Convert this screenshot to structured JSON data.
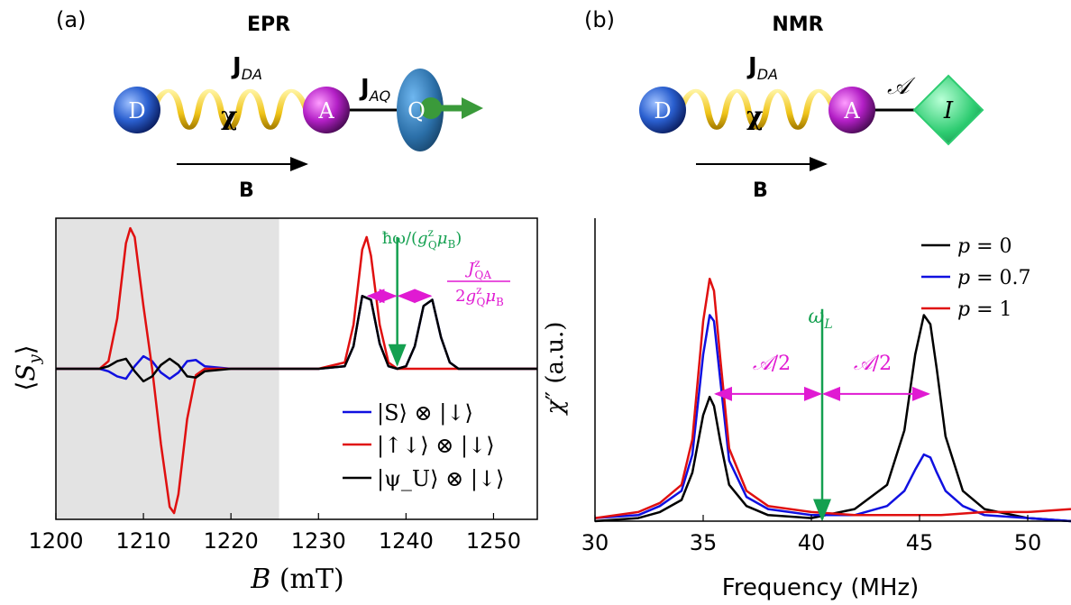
{
  "chart_data": [
    {
      "type": "line",
      "panel_label": "(a)",
      "title": "EPR",
      "schematic": {
        "nodes": [
          "D",
          "A",
          "Q"
        ],
        "coupling_labels": [
          "J_DA",
          "J_AQ"
        ],
        "coupling_symbol": "χ",
        "field_label": "B",
        "colors": {
          "D": "#2a5fcf",
          "A": "#b31fc6",
          "Q": "#2b6fa8",
          "arrow": "#3a9a3a",
          "spring": "#f0c419"
        }
      },
      "xlabel": "B (mT)",
      "ylabel": "⟨S_y⟩",
      "xlim": [
        1200,
        1255
      ],
      "ylim": [
        -1.2,
        1.2
      ],
      "xticks": [
        "1200",
        "1210",
        "1220",
        "1230",
        "1240",
        "1250"
      ],
      "shaded_region": [
        1200,
        1225.5
      ],
      "series": [
        {
          "name": "|S⟩ ⊗ |↓⟩",
          "color": "#1010e0",
          "x": [
            1200,
            1205,
            1206,
            1207,
            1208,
            1209,
            1210,
            1211,
            1212,
            1213,
            1214,
            1215,
            1216,
            1217,
            1220,
            1230,
            1233,
            1234,
            1235,
            1236,
            1237,
            1238,
            1239,
            1240,
            1241,
            1242,
            1243,
            1244,
            1245,
            1246,
            1247,
            1255
          ],
          "y": [
            0,
            0,
            -0.02,
            -0.06,
            -0.08,
            0.02,
            0.1,
            0.06,
            -0.03,
            -0.08,
            -0.03,
            0.06,
            0.07,
            0.02,
            0,
            0,
            0.02,
            0.18,
            0.58,
            0.55,
            0.2,
            0.02,
            0,
            0.02,
            0.18,
            0.5,
            0.55,
            0.25,
            0.05,
            0,
            0,
            0
          ]
        },
        {
          "name": "|↑↓⟩ ⊗ |↓⟩",
          "color": "#e01010",
          "x": [
            1200,
            1205,
            1206,
            1207,
            1208,
            1208.5,
            1209,
            1210,
            1211,
            1212,
            1213,
            1213.5,
            1214,
            1215,
            1216,
            1217,
            1220,
            1230,
            1233,
            1234,
            1235,
            1235.5,
            1236,
            1237,
            1238,
            1239,
            1255
          ],
          "y": [
            0,
            0,
            0.06,
            0.4,
            1.0,
            1.12,
            1.05,
            0.5,
            0,
            -0.6,
            -1.1,
            -1.15,
            -1.0,
            -0.4,
            -0.05,
            0,
            0,
            0,
            0.05,
            0.35,
            0.95,
            1.05,
            0.9,
            0.35,
            0.05,
            0,
            0
          ]
        },
        {
          "name": "|ψ_U⟩ ⊗ |↓⟩",
          "color": "#000000",
          "x": [
            1200,
            1205,
            1206,
            1207,
            1208,
            1209,
            1210,
            1211,
            1212,
            1213,
            1214,
            1215,
            1216,
            1217,
            1220,
            1230,
            1233,
            1234,
            1235,
            1236,
            1237,
            1238,
            1239,
            1240,
            1241,
            1242,
            1243,
            1244,
            1245,
            1246,
            1247,
            1255
          ],
          "y": [
            0,
            0,
            0.02,
            0.06,
            0.08,
            -0.02,
            -0.1,
            -0.06,
            0.03,
            0.08,
            0.03,
            -0.06,
            -0.07,
            -0.02,
            0,
            0,
            0.02,
            0.18,
            0.58,
            0.55,
            0.2,
            0.02,
            0,
            0.02,
            0.18,
            0.5,
            0.55,
            0.25,
            0.05,
            0,
            0,
            0
          ]
        }
      ],
      "annotations": [
        {
          "text": "ħω/(g^z_Q μ_B)",
          "color": "#14a050",
          "arrow_x": 1239,
          "arrow_from_y": 1.05,
          "arrow_to_y": 0.02
        },
        {
          "text": "J^z_QA / 2g^z_Q μ_B",
          "color": "#e01ad2",
          "segments": [
            [
              1235.5,
              1239
            ],
            [
              1239,
              1243
            ]
          ],
          "y": 0.58
        }
      ],
      "legend": "bottom-right"
    },
    {
      "type": "line",
      "panel_label": "(b)",
      "title": "NMR",
      "schematic": {
        "nodes": [
          "D",
          "A",
          "I"
        ],
        "coupling_labels": [
          "J_DA",
          "𝒜"
        ],
        "coupling_symbol": "χ",
        "field_label": "B",
        "colors": {
          "D": "#2a5fcf",
          "A": "#b31fc6",
          "I": "#2ecc71",
          "spring": "#f0c419"
        }
      },
      "xlabel": "Frequency (MHz)",
      "ylabel": "χ″ (a.u.)",
      "xlim": [
        30,
        52
      ],
      "ylim": [
        0,
        1.0
      ],
      "xticks": [
        "30",
        "35",
        "40",
        "45",
        "50"
      ],
      "series": [
        {
          "name": "p = 0",
          "color": "#000000",
          "x": [
            30,
            32,
            33,
            34,
            34.5,
            35,
            35.3,
            35.5,
            35.8,
            36.2,
            37,
            38,
            40,
            42,
            43.5,
            44.3,
            44.8,
            45.2,
            45.5,
            45.8,
            46.2,
            47,
            48,
            50,
            52
          ],
          "y": [
            0.0,
            0.01,
            0.03,
            0.07,
            0.16,
            0.35,
            0.41,
            0.38,
            0.26,
            0.12,
            0.05,
            0.02,
            0.01,
            0.04,
            0.12,
            0.3,
            0.55,
            0.68,
            0.65,
            0.5,
            0.28,
            0.1,
            0.04,
            0.01,
            0.0
          ]
        },
        {
          "name": "p = 0.7",
          "color": "#1010e0",
          "x": [
            30,
            32,
            33,
            34,
            34.5,
            35,
            35.3,
            35.5,
            35.8,
            36.2,
            37,
            38,
            40,
            42,
            43.5,
            44.3,
            44.8,
            45.2,
            45.5,
            45.8,
            46.2,
            47,
            48,
            50,
            52
          ],
          "y": [
            0.01,
            0.02,
            0.05,
            0.1,
            0.22,
            0.55,
            0.68,
            0.66,
            0.46,
            0.2,
            0.08,
            0.04,
            0.02,
            0.02,
            0.05,
            0.1,
            0.17,
            0.22,
            0.21,
            0.16,
            0.1,
            0.05,
            0.02,
            0.01,
            0.0
          ]
        },
        {
          "name": "p = 1",
          "color": "#e01010",
          "x": [
            30,
            32,
            33,
            34,
            34.5,
            35,
            35.3,
            35.5,
            35.8,
            36.2,
            37,
            38,
            40,
            42,
            44,
            46,
            48,
            50,
            52
          ],
          "y": [
            0.01,
            0.03,
            0.06,
            0.12,
            0.27,
            0.66,
            0.8,
            0.76,
            0.53,
            0.24,
            0.1,
            0.05,
            0.03,
            0.02,
            0.02,
            0.02,
            0.03,
            0.03,
            0.04
          ]
        }
      ],
      "annotations": [
        {
          "text": "ω_L",
          "color": "#14a050",
          "arrow_x": 40.5,
          "arrow_from_y": 0.7,
          "arrow_to_y": 0.0
        },
        {
          "text": "𝒜/2",
          "color": "#e01ad2",
          "segment": [
            35.5,
            40.5
          ],
          "y": 0.42
        },
        {
          "text": "𝒜/2",
          "color": "#e01ad2",
          "segment": [
            40.5,
            45.5
          ],
          "y": 0.42
        }
      ],
      "legend": "top-right"
    }
  ]
}
